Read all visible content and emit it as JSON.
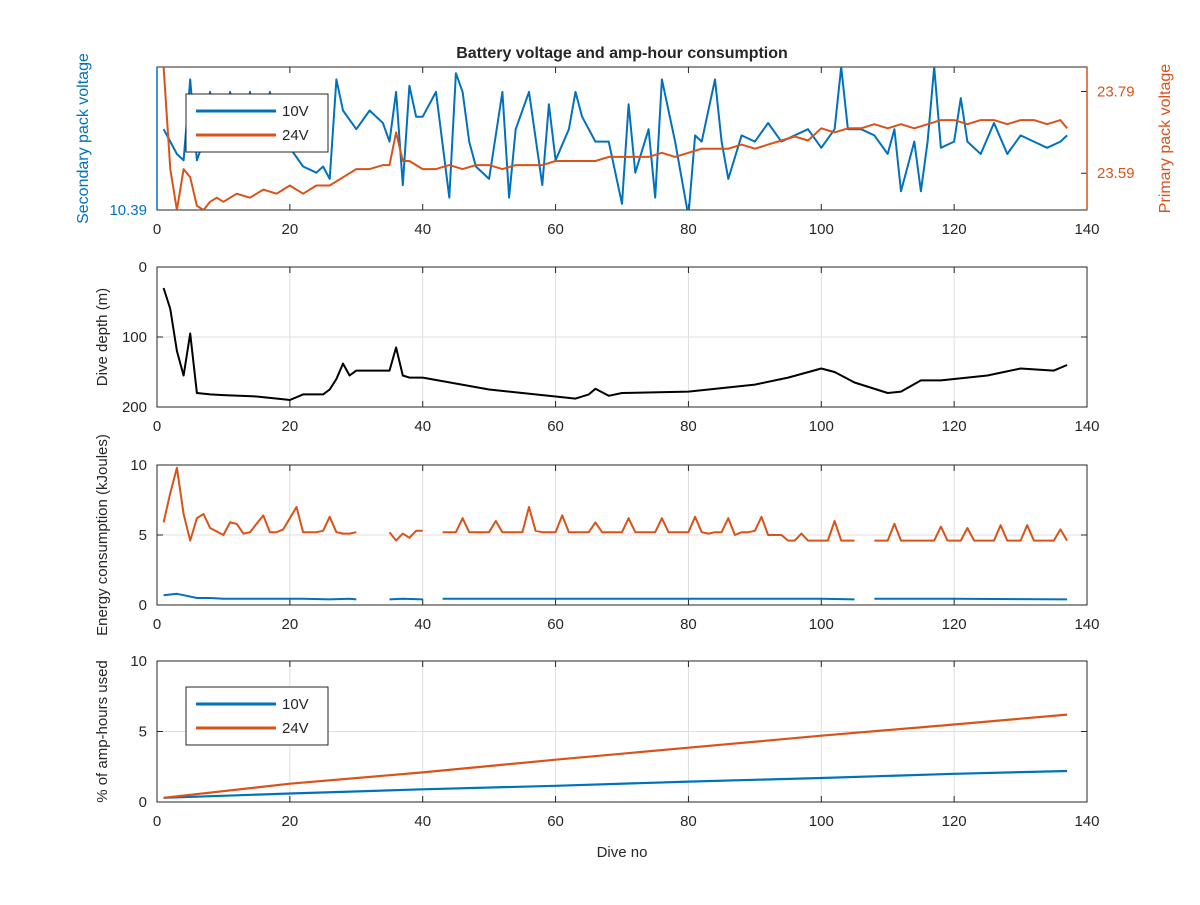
{
  "colors": {
    "ten_v": "#0072BD",
    "twenty_four_v": "#D95319",
    "depth": "#000000",
    "axis": "#262626",
    "grid": "#dfdfdf"
  },
  "chart_data": [
    {
      "type": "line",
      "title": "Battery voltage and amp-hour consumption",
      "ylabel": "Secondary pack voltage",
      "y2label": "Primary pack voltage",
      "xlim": [
        0,
        140
      ],
      "xticks": [
        "0",
        "20",
        "40",
        "60",
        "80",
        "100",
        "120",
        "140"
      ],
      "ylim": [
        10.39,
        10.62
      ],
      "yticks": [
        "10.39"
      ],
      "y2lim": [
        23.5,
        23.85
      ],
      "y2ticks": [
        "23.59",
        "23.79"
      ],
      "legend": {
        "position": "top-left",
        "entries": [
          "10V",
          "24V"
        ]
      },
      "grid": false,
      "series": [
        {
          "name": "10V",
          "axis": "left",
          "x": [
            1,
            2,
            3,
            4,
            5,
            6,
            7,
            8,
            9,
            10,
            11,
            12,
            13,
            14,
            15,
            16,
            17,
            18,
            19,
            20,
            22,
            24,
            25,
            26,
            27,
            28,
            30,
            32,
            34,
            35,
            36,
            37,
            38,
            39,
            40,
            42,
            44,
            45,
            46,
            47,
            48,
            50,
            52,
            53,
            54,
            56,
            58,
            59,
            60,
            62,
            63,
            64,
            66,
            68,
            70,
            71,
            72,
            74,
            75,
            76,
            78,
            80,
            81,
            82,
            84,
            85,
            86,
            88,
            90,
            92,
            94,
            96,
            98,
            100,
            102,
            103,
            104,
            106,
            108,
            110,
            111,
            112,
            114,
            115,
            116,
            117,
            118,
            120,
            121,
            122,
            124,
            126,
            128,
            130,
            132,
            134,
            136,
            137
          ],
          "values": [
            10.52,
            10.5,
            10.48,
            10.47,
            10.6,
            10.47,
            10.5,
            10.58,
            10.49,
            10.5,
            10.58,
            10.51,
            10.5,
            10.58,
            10.49,
            10.5,
            10.58,
            10.52,
            10.51,
            10.49,
            10.46,
            10.45,
            10.46,
            10.44,
            10.6,
            10.55,
            10.52,
            10.55,
            10.53,
            10.5,
            10.58,
            10.43,
            10.59,
            10.54,
            10.54,
            10.58,
            10.41,
            10.61,
            10.58,
            10.5,
            10.46,
            10.44,
            10.58,
            10.41,
            10.52,
            10.58,
            10.43,
            10.56,
            10.47,
            10.52,
            10.58,
            10.54,
            10.5,
            10.5,
            10.4,
            10.56,
            10.45,
            10.52,
            10.41,
            10.6,
            10.5,
            10.38,
            10.51,
            10.5,
            10.6,
            10.5,
            10.44,
            10.51,
            10.5,
            10.53,
            10.5,
            10.51,
            10.52,
            10.49,
            10.52,
            10.62,
            10.52,
            10.52,
            10.51,
            10.48,
            10.52,
            10.42,
            10.5,
            10.42,
            10.5,
            10.62,
            10.49,
            10.5,
            10.57,
            10.5,
            10.48,
            10.53,
            10.48,
            10.51,
            10.5,
            10.49,
            10.5,
            10.51
          ]
        },
        {
          "name": "24V",
          "axis": "right",
          "x": [
            1,
            2,
            3,
            4,
            5,
            6,
            7,
            8,
            9,
            10,
            12,
            14,
            16,
            18,
            20,
            22,
            24,
            26,
            28,
            30,
            32,
            34,
            35,
            36,
            37,
            38,
            40,
            42,
            44,
            46,
            48,
            50,
            52,
            54,
            56,
            58,
            60,
            62,
            64,
            66,
            68,
            70,
            72,
            74,
            76,
            78,
            80,
            82,
            84,
            86,
            88,
            90,
            92,
            94,
            96,
            98,
            100,
            102,
            104,
            106,
            108,
            110,
            112,
            114,
            116,
            118,
            120,
            122,
            124,
            126,
            128,
            130,
            132,
            134,
            136,
            137
          ],
          "values": [
            23.85,
            23.6,
            23.5,
            23.6,
            23.58,
            23.51,
            23.5,
            23.52,
            23.53,
            23.52,
            23.54,
            23.53,
            23.55,
            23.54,
            23.56,
            23.54,
            23.56,
            23.56,
            23.58,
            23.6,
            23.6,
            23.61,
            23.61,
            23.69,
            23.62,
            23.62,
            23.6,
            23.6,
            23.61,
            23.6,
            23.61,
            23.61,
            23.6,
            23.61,
            23.61,
            23.61,
            23.62,
            23.62,
            23.62,
            23.62,
            23.63,
            23.63,
            23.63,
            23.63,
            23.64,
            23.63,
            23.64,
            23.65,
            23.65,
            23.65,
            23.66,
            23.65,
            23.66,
            23.67,
            23.68,
            23.67,
            23.7,
            23.69,
            23.7,
            23.7,
            23.71,
            23.7,
            23.71,
            23.7,
            23.71,
            23.72,
            23.72,
            23.71,
            23.72,
            23.72,
            23.71,
            23.72,
            23.72,
            23.71,
            23.72,
            23.7
          ]
        }
      ]
    },
    {
      "type": "line",
      "title": "",
      "ylabel": "Dive depth (m)",
      "xlim": [
        0,
        140
      ],
      "xticks": [
        "0",
        "20",
        "40",
        "60",
        "80",
        "100",
        "120",
        "140"
      ],
      "ylim": [
        0,
        200
      ],
      "yreverse": true,
      "yticks": [
        "0",
        "100",
        "200"
      ],
      "grid": true,
      "series": [
        {
          "name": "",
          "axis": "left",
          "x": [
            1,
            2,
            3,
            4,
            5,
            6,
            8,
            10,
            15,
            19,
            20,
            22,
            25,
            26,
            27,
            28,
            29,
            30,
            35,
            36,
            37,
            38,
            40,
            50,
            60,
            63,
            65,
            66,
            68,
            70,
            80,
            90,
            95,
            100,
            102,
            105,
            110,
            112,
            115,
            118,
            120,
            125,
            130,
            135,
            137
          ],
          "values": [
            30,
            60,
            120,
            155,
            95,
            180,
            182,
            183,
            185,
            189,
            190,
            182,
            182,
            175,
            160,
            138,
            155,
            148,
            148,
            115,
            155,
            158,
            158,
            175,
            185,
            188,
            182,
            174,
            184,
            180,
            178,
            168,
            158,
            145,
            150,
            165,
            180,
            178,
            162,
            162,
            160,
            155,
            145,
            148,
            140
          ]
        }
      ]
    },
    {
      "type": "line",
      "title": "",
      "ylabel": "Energy consumption (kJoules)",
      "xlim": [
        0,
        140
      ],
      "xticks": [
        "0",
        "20",
        "40",
        "60",
        "80",
        "100",
        "120",
        "140"
      ],
      "ylim": [
        0,
        10
      ],
      "yticks": [
        "0",
        "5",
        "10"
      ],
      "grid": true,
      "series": [
        {
          "name": "10V",
          "axis": "left",
          "segments": [
            {
              "x": [
                1,
                3,
                4,
                6,
                8,
                10,
                14,
                18,
                22,
                26,
                29,
                30
              ],
              "values": [
                0.7,
                0.8,
                0.7,
                0.5,
                0.5,
                0.45,
                0.45,
                0.45,
                0.45,
                0.4,
                0.45,
                0.4
              ]
            },
            {
              "x": [
                35,
                37,
                40
              ],
              "values": [
                0.4,
                0.45,
                0.4
              ]
            },
            {
              "x": [
                43,
                60,
                80,
                95,
                100,
                105
              ],
              "values": [
                0.45,
                0.45,
                0.45,
                0.45,
                0.45,
                0.4
              ]
            },
            {
              "x": [
                108,
                120,
                137
              ],
              "values": [
                0.45,
                0.45,
                0.4
              ]
            }
          ]
        },
        {
          "name": "24V",
          "axis": "right",
          "segments": [
            {
              "x": [
                1,
                2,
                3,
                4,
                5,
                6,
                7,
                8,
                10,
                11,
                12,
                13,
                14,
                15,
                16,
                17,
                18,
                19,
                20,
                21,
                22,
                23,
                24,
                25,
                26,
                27,
                28,
                29,
                30
              ],
              "values": [
                5.9,
                8,
                9.8,
                6.5,
                4.6,
                6.2,
                6.5,
                5.5,
                5,
                5.9,
                5.8,
                5.1,
                5.2,
                5.8,
                6.4,
                5.2,
                5.2,
                5.4,
                6.2,
                7,
                5.2,
                5.2,
                5.2,
                5.3,
                6.3,
                5.2,
                5.1,
                5.1,
                5.2
              ]
            },
            {
              "x": [
                35,
                36,
                37,
                38,
                39,
                40
              ],
              "values": [
                5.2,
                4.6,
                5.1,
                4.8,
                5.3,
                5.3
              ]
            },
            {
              "x": [
                43,
                45,
                46,
                47,
                48,
                50,
                51,
                52,
                53,
                54,
                55,
                56,
                57,
                58,
                59,
                60,
                61,
                62,
                63,
                64,
                65,
                66,
                67,
                68,
                69,
                70,
                71,
                72,
                73,
                74,
                75,
                76,
                77,
                78,
                79,
                80,
                81,
                82,
                83,
                84,
                85,
                86,
                87,
                88,
                89,
                90,
                91,
                92,
                93,
                94,
                95,
                96,
                97,
                98,
                99,
                100,
                101,
                102,
                103,
                104,
                105
              ],
              "values": [
                5.2,
                5.2,
                6.2,
                5.2,
                5.2,
                5.2,
                6,
                5.2,
                5.2,
                5.2,
                5.2,
                7,
                5.3,
                5.2,
                5.2,
                5.2,
                6.4,
                5.2,
                5.2,
                5.2,
                5.2,
                5.9,
                5.2,
                5.2,
                5.2,
                5.2,
                6.2,
                5.2,
                5.2,
                5.2,
                5.2,
                6.2,
                5.2,
                5.2,
                5.2,
                5.2,
                6.3,
                5.2,
                5.1,
                5.2,
                5.2,
                6.2,
                5,
                5.2,
                5.2,
                5.3,
                6.3,
                5,
                5,
                5,
                4.6,
                4.6,
                5.1,
                4.6,
                4.6,
                4.6,
                4.6,
                6,
                4.6,
                4.6,
                4.6
              ]
            },
            {
              "x": [
                108,
                109,
                110,
                111,
                112,
                113,
                114,
                115,
                116,
                117,
                118,
                119,
                120,
                121,
                122,
                123,
                124,
                125,
                126,
                127,
                128,
                129,
                130,
                131,
                132,
                133,
                134,
                135,
                136,
                137
              ],
              "values": [
                4.6,
                4.6,
                4.6,
                5.8,
                4.6,
                4.6,
                4.6,
                4.6,
                4.6,
                4.6,
                5.6,
                4.6,
                4.6,
                4.6,
                5.5,
                4.6,
                4.6,
                4.6,
                4.6,
                5.7,
                4.6,
                4.6,
                4.6,
                5.7,
                4.6,
                4.6,
                4.6,
                4.6,
                5.4,
                4.6
              ]
            }
          ]
        }
      ]
    },
    {
      "type": "line",
      "title": "",
      "ylabel": "% of amp-hours used",
      "xlabel": "Dive no",
      "xlim": [
        0,
        140
      ],
      "xticks": [
        "0",
        "20",
        "40",
        "60",
        "80",
        "100",
        "120",
        "140"
      ],
      "ylim": [
        0,
        10
      ],
      "yticks": [
        "0",
        "5",
        "10"
      ],
      "legend": {
        "position": "top-left",
        "entries": [
          "10V",
          "24V"
        ]
      },
      "grid": true,
      "series": [
        {
          "name": "10V",
          "axis": "left",
          "x": [
            1,
            20,
            40,
            60,
            80,
            100,
            120,
            137
          ],
          "values": [
            0.3,
            0.6,
            0.9,
            1.15,
            1.45,
            1.7,
            2,
            2.2
          ]
        },
        {
          "name": "24V",
          "axis": "left",
          "x": [
            1,
            20,
            40,
            60,
            80,
            100,
            120,
            137
          ],
          "values": [
            0.3,
            1.3,
            2.1,
            3,
            3.85,
            4.7,
            5.5,
            6.2
          ]
        }
      ]
    }
  ]
}
